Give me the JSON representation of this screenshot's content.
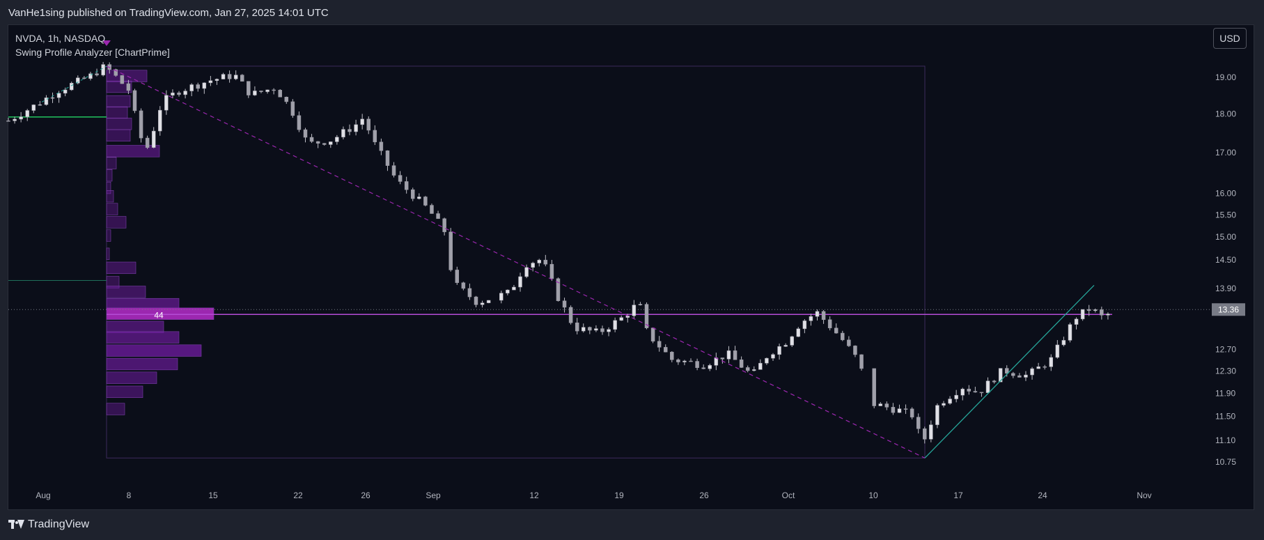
{
  "header": {
    "published_text": "VanHe1sing published on TradingView.com, Jan 27, 2025 14:01 UTC"
  },
  "legend": {
    "symbol": "NVDA, 1h, NASDAQ",
    "indicator": "Swing Profile Analyzer [ChartPrime]"
  },
  "toolbar": {
    "currency": "USD"
  },
  "footer": {
    "brand": "TradingView"
  },
  "colors": {
    "background": "#0b0e19",
    "frame": "#1e222d",
    "candle": "#c0c0c8",
    "profile_bar": "#6a1b9a",
    "poc_bar": "#9c27b0",
    "poc_line": "#b44cd6",
    "swing_line": "#9c27b0",
    "trend_up": "#26a69a",
    "level_green": "#22c55e",
    "price_label_bg": "#787b86",
    "axis_text": "#b2b5be"
  },
  "chart_data": {
    "type": "candlestick",
    "symbol": "NVDA",
    "timeframe": "1h",
    "exchange": "NASDAQ",
    "scale": "log",
    "ylim": [
      10.55,
      19.6
    ],
    "y_ticks": [
      19.0,
      18.0,
      17.0,
      16.0,
      15.5,
      15.0,
      14.5,
      13.9,
      12.7,
      12.3,
      11.9,
      11.5,
      11.1,
      10.75
    ],
    "y_tick_labels": [
      "19.00",
      "18.00",
      "17.00",
      "16.00",
      "15.50",
      "15.00",
      "14.50",
      "13.90",
      "12.70",
      "12.30",
      "11.90",
      "11.50",
      "11.10",
      "10.75"
    ],
    "x_labels": [
      "Aug",
      "8",
      "15",
      "22",
      "26",
      "Sep",
      "12",
      "19",
      "26",
      "Oct",
      "10",
      "17",
      "24",
      "Nov"
    ],
    "last_price": 13.36,
    "last_price_label": "13.36",
    "price_path": [
      [
        0,
        17.8
      ],
      [
        4,
        18.3
      ],
      [
        6,
        18.6
      ],
      [
        10,
        19.0
      ],
      [
        12,
        19.3
      ],
      [
        15,
        18.6
      ],
      [
        16,
        17.6
      ],
      [
        17,
        17.0
      ],
      [
        18,
        17.6
      ],
      [
        19,
        18.3
      ],
      [
        21,
        18.6
      ],
      [
        25,
        18.9
      ],
      [
        28,
        19.05
      ],
      [
        30,
        18.5
      ],
      [
        33,
        18.7
      ],
      [
        35,
        18.1
      ],
      [
        37,
        17.2
      ],
      [
        40,
        17.3
      ],
      [
        43,
        17.7
      ],
      [
        44,
        17.9
      ],
      [
        45,
        17.3
      ],
      [
        48,
        16.3
      ],
      [
        52,
        15.6
      ],
      [
        54,
        15.1
      ],
      [
        55,
        14.0
      ],
      [
        58,
        13.6
      ],
      [
        62,
        13.8
      ],
      [
        64,
        14.4
      ],
      [
        66,
        14.5
      ],
      [
        68,
        13.7
      ],
      [
        70,
        13.1
      ],
      [
        73,
        13.0
      ],
      [
        76,
        13.3
      ],
      [
        78,
        13.6
      ],
      [
        79,
        13.0
      ],
      [
        82,
        12.5
      ],
      [
        86,
        12.4
      ],
      [
        89,
        12.6
      ],
      [
        92,
        12.2
      ],
      [
        94,
        12.6
      ],
      [
        96,
        12.8
      ],
      [
        98,
        13.2
      ],
      [
        100,
        13.4
      ],
      [
        103,
        12.9
      ],
      [
        105,
        12.5
      ],
      [
        107,
        11.7
      ],
      [
        110,
        11.6
      ],
      [
        112,
        11.5
      ],
      [
        113,
        11.0
      ],
      [
        115,
        11.7
      ],
      [
        118,
        12.0
      ],
      [
        120,
        11.9
      ],
      [
        123,
        12.3
      ],
      [
        126,
        12.2
      ],
      [
        129,
        12.5
      ],
      [
        132,
        13.3
      ],
      [
        134,
        13.5
      ],
      [
        135,
        13.3
      ],
      [
        136,
        13.36
      ]
    ],
    "swing": {
      "high": 19.3,
      "low": 10.8,
      "poc_price": 13.36,
      "poc_volume_label": "44",
      "prior_level": 17.9
    },
    "volume_profile": [
      {
        "price": 19.0,
        "width": 58
      },
      {
        "price": 18.7,
        "width": 36
      },
      {
        "price": 18.3,
        "width": 34
      },
      {
        "price": 18.0,
        "width": 30
      },
      {
        "price": 17.7,
        "width": 36
      },
      {
        "price": 17.4,
        "width": 34
      },
      {
        "price": 17.0,
        "width": 76
      },
      {
        "price": 16.7,
        "width": 14
      },
      {
        "price": 16.4,
        "width": 8
      },
      {
        "price": 16.1,
        "width": 6
      },
      {
        "price": 15.9,
        "width": 10
      },
      {
        "price": 15.6,
        "width": 16
      },
      {
        "price": 15.3,
        "width": 28
      },
      {
        "price": 15.0,
        "width": 6
      },
      {
        "price": 14.6,
        "width": 4
      },
      {
        "price": 14.3,
        "width": 42
      },
      {
        "price": 14.0,
        "width": 18
      },
      {
        "price": 13.8,
        "width": 56
      },
      {
        "price": 13.55,
        "width": 104
      },
      {
        "price": 13.36,
        "width": 154
      },
      {
        "price": 13.1,
        "width": 82
      },
      {
        "price": 12.9,
        "width": 104
      },
      {
        "price": 12.65,
        "width": 136
      },
      {
        "price": 12.4,
        "width": 102
      },
      {
        "price": 12.15,
        "width": 72
      },
      {
        "price": 11.9,
        "width": 52
      },
      {
        "price": 11.6,
        "width": 26
      }
    ]
  }
}
